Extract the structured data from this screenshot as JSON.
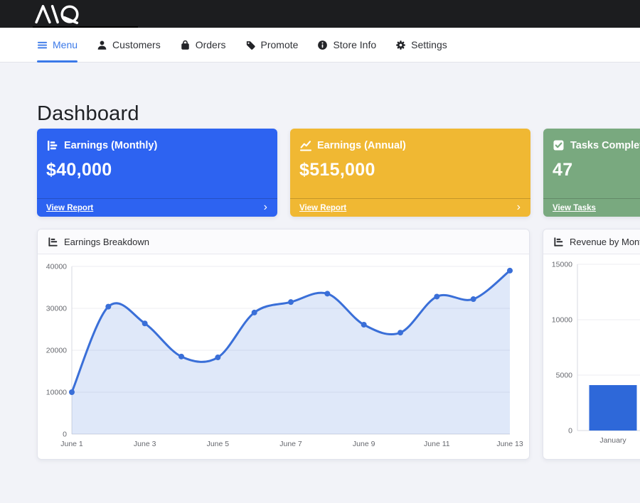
{
  "topbar": {
    "logo": "AQ"
  },
  "nav": {
    "items": [
      {
        "label": "Menu",
        "icon": "hamburger-icon",
        "active": true
      },
      {
        "label": "Customers",
        "icon": "user-icon",
        "active": false
      },
      {
        "label": "Orders",
        "icon": "shopping-bag-icon",
        "active": false
      },
      {
        "label": "Promote",
        "icon": "tag-icon",
        "active": false
      },
      {
        "label": "Store Info",
        "icon": "info-circle-icon",
        "active": false
      },
      {
        "label": "Settings",
        "icon": "gear-icon",
        "active": false
      }
    ]
  },
  "page": {
    "title": "Dashboard"
  },
  "stat_cards": [
    {
      "title": "Earnings (Monthly)",
      "value": "$40,000",
      "link_label": "View Report",
      "color": "#2d63f1",
      "icon": "chart-bar-icon"
    },
    {
      "title": "Earnings (Annual)",
      "value": "$515,000",
      "link_label": "View Report",
      "color": "#f0b833",
      "icon": "chart-line-icon"
    },
    {
      "title": "Tasks Completed",
      "value": "47",
      "link_label": "View Tasks",
      "color": "#79a97f",
      "icon": "check-square-icon"
    }
  ],
  "chart_data": [
    {
      "type": "area",
      "title": "Earnings Breakdown",
      "x": [
        "June 1",
        "June 2",
        "June 3",
        "June 4",
        "June 5",
        "June 6",
        "June 7",
        "June 8",
        "June 9",
        "June 10",
        "June 11",
        "June 12",
        "June 13"
      ],
      "values": [
        10000,
        30400,
        26400,
        18500,
        18300,
        29000,
        31500,
        33500,
        26100,
        24200,
        32800,
        32200,
        39000
      ],
      "xticks": [
        "June 1",
        "June 3",
        "June 5",
        "June 7",
        "June 9",
        "June 11",
        "June 13"
      ],
      "yticks": [
        0,
        10000,
        20000,
        30000,
        40000
      ],
      "ylim": [
        0,
        40000
      ],
      "xlabel": "",
      "ylabel": "",
      "grid": true,
      "legend": "none",
      "line_color": "#3a6fd8",
      "fill_color": "rgba(58,111,216,0.16)"
    },
    {
      "type": "bar",
      "title": "Revenue by Month",
      "categories": [
        "January"
      ],
      "values": [
        4100
      ],
      "yticks": [
        0,
        5000,
        10000,
        15000
      ],
      "ylim": [
        0,
        15000
      ],
      "xlabel": "",
      "ylabel": "",
      "grid": true,
      "legend": "none",
      "bar_color": "#2e68d9"
    }
  ]
}
